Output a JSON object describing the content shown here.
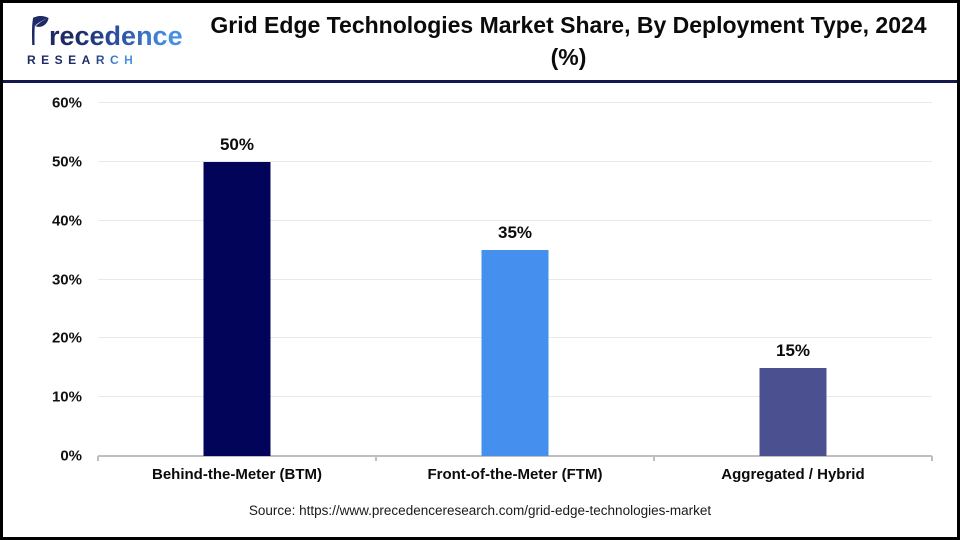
{
  "header": {
    "logo": {
      "brand_mark": "P",
      "brand_rest": "recedence",
      "research_line": "RESEARCH"
    },
    "title": "Grid Edge Technologies Market Share, By Deployment Type, 2024 (%)"
  },
  "chart_data": {
    "type": "bar",
    "title": "Grid Edge Technologies Market Share, By Deployment Type, 2024 (%)",
    "categories": [
      "Behind-the-Meter (BTM)",
      "Front-of-the-Meter (FTM)",
      "Aggregated / Hybrid"
    ],
    "values": [
      50,
      35,
      15
    ],
    "value_labels": [
      "50%",
      "35%",
      "15%"
    ],
    "bar_colors": [
      "#02045A",
      "#4590EE",
      "#4B5090"
    ],
    "xlabel": "",
    "ylabel": "",
    "ylim": [
      0,
      60
    ],
    "ytick_step": 10,
    "ytick_labels": [
      "0%",
      "10%",
      "20%",
      "30%",
      "40%",
      "50%",
      "60%"
    ],
    "grid": true,
    "legend": false
  },
  "footer": {
    "source": "Source: https://www.precedenceresearch.com/grid-edge-technologies-market"
  },
  "colors": {
    "header_rule": "#14194D",
    "gridline": "#e9e9e9",
    "baseline": "#bfbfbf",
    "logo_navy": "#1E2A66",
    "logo_blue": "#4792E0"
  }
}
